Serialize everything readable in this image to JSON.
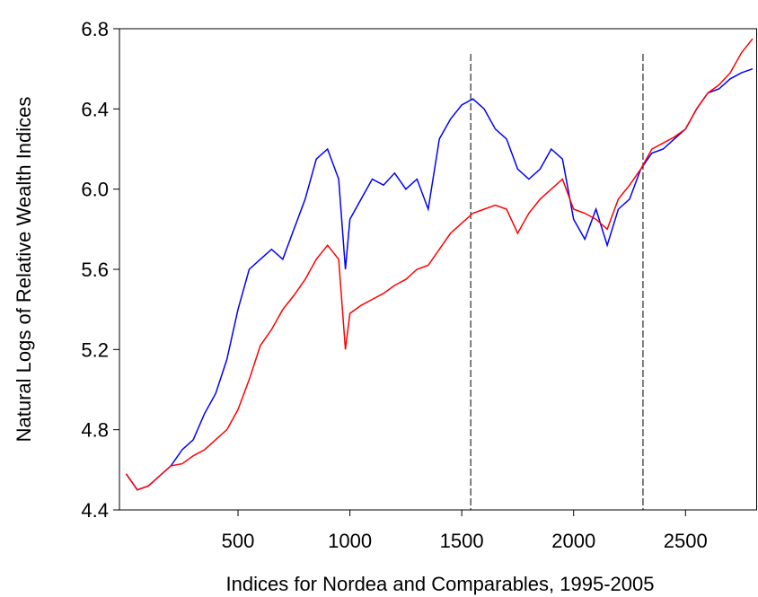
{
  "chart_data": {
    "type": "line",
    "x_label": "Indices for Nordea and Comparables, 1995-2005",
    "y_label": "Natural Logs of Relative Wealth Indices",
    "x": [
      0,
      50,
      100,
      150,
      200,
      250,
      300,
      350,
      400,
      450,
      500,
      550,
      600,
      650,
      700,
      750,
      800,
      850,
      900,
      950,
      980,
      1000,
      1050,
      1100,
      1150,
      1200,
      1250,
      1300,
      1350,
      1400,
      1450,
      1500,
      1550,
      1600,
      1650,
      1700,
      1750,
      1800,
      1850,
      1900,
      1950,
      2000,
      2050,
      2100,
      2150,
      2200,
      2250,
      2300,
      2350,
      2400,
      2450,
      2500,
      2550,
      2600,
      2650,
      2700,
      2750,
      2800
    ],
    "series": [
      {
        "color": "#0000ff",
        "values": [
          4.58,
          4.5,
          4.52,
          4.57,
          4.62,
          4.7,
          4.75,
          4.88,
          4.98,
          5.15,
          5.4,
          5.6,
          5.65,
          5.7,
          5.65,
          5.8,
          5.95,
          6.15,
          6.2,
          6.05,
          5.6,
          5.85,
          5.95,
          6.05,
          6.02,
          6.08,
          6.0,
          6.05,
          5.9,
          6.25,
          6.35,
          6.42,
          6.45,
          6.4,
          6.3,
          6.25,
          6.1,
          6.05,
          6.1,
          6.2,
          6.15,
          5.85,
          5.75,
          5.9,
          5.72,
          5.9,
          5.95,
          6.1,
          6.18,
          6.2,
          6.25,
          6.3,
          6.4,
          6.48,
          6.5,
          6.55,
          6.58,
          6.6
        ]
      },
      {
        "color": "#ff0000",
        "values": [
          4.58,
          4.5,
          4.52,
          4.57,
          4.62,
          4.63,
          4.67,
          4.7,
          4.75,
          4.8,
          4.9,
          5.05,
          5.22,
          5.3,
          5.4,
          5.47,
          5.55,
          5.65,
          5.72,
          5.65,
          5.2,
          5.38,
          5.42,
          5.45,
          5.48,
          5.52,
          5.55,
          5.6,
          5.62,
          5.7,
          5.78,
          5.83,
          5.88,
          5.9,
          5.92,
          5.9,
          5.78,
          5.88,
          5.95,
          6.0,
          6.05,
          5.9,
          5.88,
          5.85,
          5.8,
          5.95,
          6.02,
          6.1,
          6.2,
          6.23,
          6.26,
          6.3,
          6.4,
          6.48,
          6.52,
          6.58,
          6.68,
          6.75
        ]
      }
    ],
    "vlines": [
      1540,
      2310
    ],
    "xlim": [
      -30,
      2820
    ],
    "ylim": [
      4.4,
      6.8
    ],
    "xticks": [
      500,
      1000,
      1500,
      2000,
      2500
    ],
    "yticks": [
      4.4,
      4.8,
      5.2,
      5.6,
      {
        "value": 6,
        "label": "6.0"
      },
      6.4,
      6.8
    ]
  }
}
